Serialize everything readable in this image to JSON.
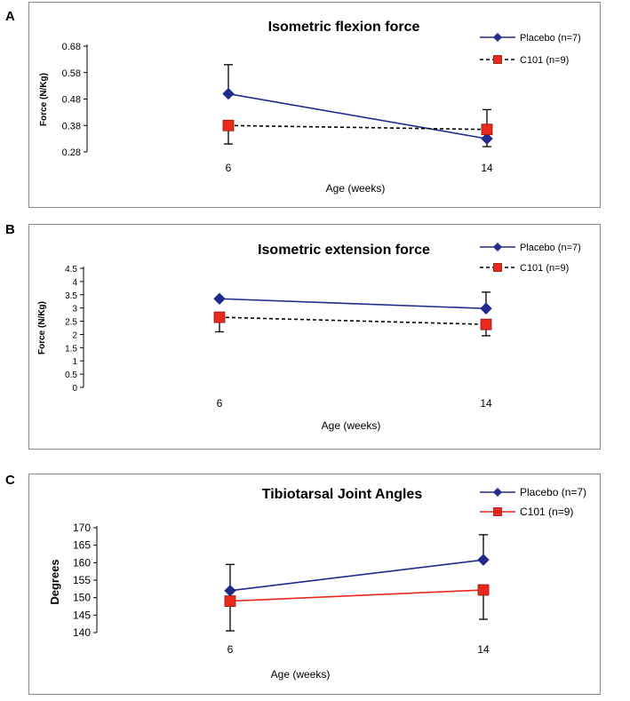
{
  "panels": [
    {
      "letter": "A"
    },
    {
      "letter": "B"
    },
    {
      "letter": "C"
    }
  ],
  "chart_data": [
    {
      "type": "line",
      "title": "Isometric flexion force",
      "xlabel": "Age (weeks)",
      "ylabel": "Force (N/Kg)",
      "categories": [
        "6",
        "14"
      ],
      "ylim": [
        0.28,
        0.68
      ],
      "yticks": [
        "0.28",
        "0.38",
        "0.48",
        "0.58",
        "0.68"
      ],
      "legend_position": "top-right",
      "series": [
        {
          "name": "Placebo (n=7)",
          "values": [
            0.5,
            0.33
          ],
          "error_low": [
            null,
            0.3
          ],
          "error_high": [
            0.61,
            null
          ],
          "color": "#1f2a8c",
          "marker": "diamond",
          "dash": "solid"
        },
        {
          "name": "C101 (n=9)",
          "values": [
            0.38,
            0.365
          ],
          "error_low": [
            0.31,
            null
          ],
          "error_high": [
            null,
            0.44
          ],
          "color": "#e8291c",
          "marker": "square",
          "dash": "dashed"
        }
      ]
    },
    {
      "type": "line",
      "title": "Isometric extension force",
      "xlabel": "Age (weeks)",
      "ylabel": "Force (N/Kg)",
      "categories": [
        "6",
        "14"
      ],
      "ylim": [
        0,
        4.5
      ],
      "yticks": [
        "0",
        "0.5",
        "1",
        "1.5",
        "2",
        "2.5",
        "3",
        "3.5",
        "4",
        "4.5"
      ],
      "legend_position": "top-right",
      "series": [
        {
          "name": "Placebo (n=7)",
          "values": [
            3.35,
            2.98
          ],
          "error_low": [
            null,
            null
          ],
          "error_high": [
            null,
            3.6
          ],
          "color": "#1f2a8c",
          "marker": "diamond",
          "dash": "solid"
        },
        {
          "name": "C101 (n=9)",
          "values": [
            2.65,
            2.38
          ],
          "error_low": [
            2.1,
            1.95
          ],
          "error_high": [
            null,
            null
          ],
          "color": "#e8291c",
          "marker": "square",
          "dash": "dashed"
        }
      ]
    },
    {
      "type": "line",
      "title": "Tibiotarsal Joint Angles",
      "xlabel": "Age (weeks)",
      "ylabel": "Degrees",
      "categories": [
        "6",
        "14"
      ],
      "ylim": [
        140,
        170
      ],
      "yticks": [
        "140",
        "145",
        "150",
        "155",
        "160",
        "165",
        "170"
      ],
      "legend_position": "top-right",
      "series": [
        {
          "name": "Placebo (n=7)",
          "values": [
            152,
            160.8
          ],
          "error_low": [
            null,
            null
          ],
          "error_high": [
            159.5,
            168
          ],
          "color": "#1f2a8c",
          "marker": "diamond",
          "dash": "solid"
        },
        {
          "name": "C101 (n=9)",
          "values": [
            149,
            152.2
          ],
          "error_low": [
            140.5,
            143.8
          ],
          "error_high": [
            null,
            null
          ],
          "color": "#e8291c",
          "marker": "square",
          "dash": "solid"
        }
      ]
    }
  ]
}
